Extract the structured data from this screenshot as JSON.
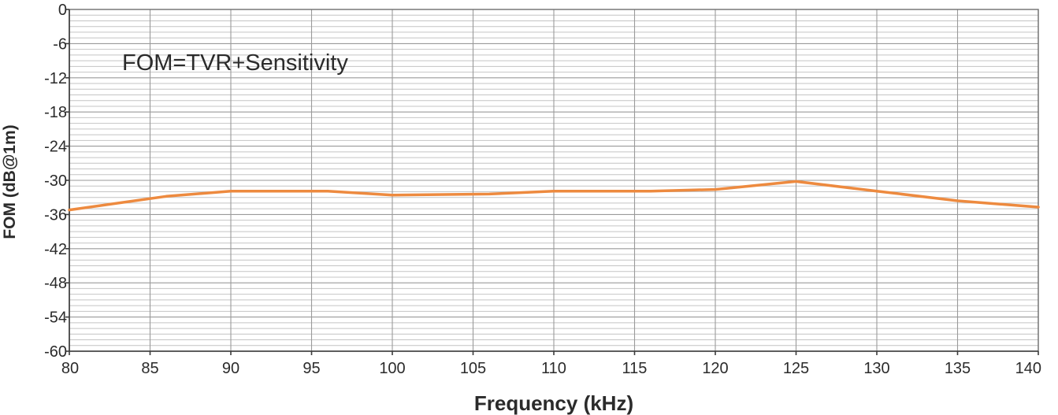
{
  "chart_data": {
    "type": "line",
    "title": "",
    "xlabel": "Frequency (kHz)",
    "ylabel": "FOM (dB@1m)",
    "annotation": "FOM=TVR+Sensitivity",
    "xlim": [
      80,
      140
    ],
    "ylim": [
      -60,
      0
    ],
    "x_ticks": [
      "80",
      "85",
      "90",
      "95",
      "100",
      "105",
      "110",
      "115",
      "120",
      "125",
      "130",
      "135",
      "140"
    ],
    "y_ticks": [
      "0",
      "-6",
      "-12",
      "-18",
      "-24",
      "-30",
      "-36",
      "-42",
      "-48",
      "-54",
      "-60"
    ],
    "grid": true,
    "legend": "none",
    "series": [
      {
        "color": "#ed8a3f",
        "x": [
          80,
          86,
          90,
          96,
          100,
          106,
          110,
          116,
          120,
          125,
          130,
          135,
          140
        ],
        "y": [
          -35.2,
          -32.8,
          -31.9,
          -31.9,
          -32.6,
          -32.4,
          -31.9,
          -31.9,
          -31.6,
          -30.2,
          -31.9,
          -33.6,
          -34.7
        ]
      }
    ]
  }
}
